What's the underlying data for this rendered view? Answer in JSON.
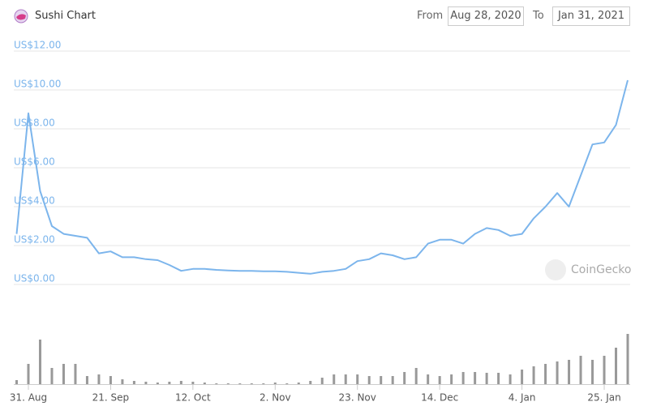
{
  "header": {
    "title": "Sushi Chart",
    "from_label": "From",
    "from": "Aug 28, 2020",
    "to_label": "To",
    "to": "Jan 31, 2021"
  },
  "watermark": "CoinGecko",
  "chart_data": {
    "type": "line",
    "color": "#7cb5ec",
    "grid": true,
    "ylim": [
      0,
      12
    ],
    "yticks": [
      {
        "value": 0,
        "label": "US$0.00"
      },
      {
        "value": 2,
        "label": "US$2.00"
      },
      {
        "value": 4,
        "label": "US$4.00"
      },
      {
        "value": 6,
        "label": "US$6.00"
      },
      {
        "value": 8,
        "label": "US$8.00"
      },
      {
        "value": 10,
        "label": "US$10.00"
      },
      {
        "value": 12,
        "label": "US$12.00"
      }
    ],
    "categories": [
      null,
      "31. Aug",
      null,
      null,
      null,
      null,
      null,
      null,
      "21. Sep",
      null,
      null,
      null,
      null,
      null,
      null,
      "12. Oct",
      null,
      null,
      null,
      null,
      null,
      null,
      "2. Nov",
      null,
      null,
      null,
      null,
      null,
      null,
      "23. Nov",
      null,
      null,
      null,
      null,
      null,
      null,
      "14. Dec",
      null,
      null,
      null,
      null,
      null,
      null,
      "4. Jan",
      null,
      null,
      null,
      null,
      null,
      null,
      "25. Jan",
      null,
      null
    ],
    "values": [
      2.6,
      8.8,
      4.8,
      3.0,
      2.6,
      2.5,
      2.4,
      1.6,
      1.7,
      1.4,
      1.4,
      1.3,
      1.25,
      1.0,
      0.7,
      0.8,
      0.8,
      0.75,
      0.72,
      0.7,
      0.7,
      0.68,
      0.68,
      0.65,
      0.6,
      0.55,
      0.65,
      0.7,
      0.8,
      1.2,
      1.3,
      1.6,
      1.5,
      1.3,
      1.4,
      2.1,
      2.3,
      2.3,
      2.1,
      2.6,
      2.9,
      2.8,
      2.5,
      2.6,
      3.4,
      4.0,
      4.7,
      4.0,
      5.6,
      7.2,
      7.3,
      8.2,
      10.5
    ],
    "volume": {
      "type": "bar",
      "color": "#999999",
      "values": [
        5,
        25,
        55,
        20,
        25,
        25,
        10,
        12,
        10,
        6,
        4,
        3,
        2,
        3,
        4,
        3,
        2,
        1,
        1,
        1,
        1,
        1,
        2,
        1,
        2,
        4,
        8,
        12,
        12,
        12,
        10,
        10,
        10,
        15,
        20,
        12,
        10,
        12,
        15,
        15,
        14,
        14,
        12,
        18,
        22,
        25,
        28,
        30,
        35,
        30,
        35,
        45,
        62
      ]
    }
  }
}
